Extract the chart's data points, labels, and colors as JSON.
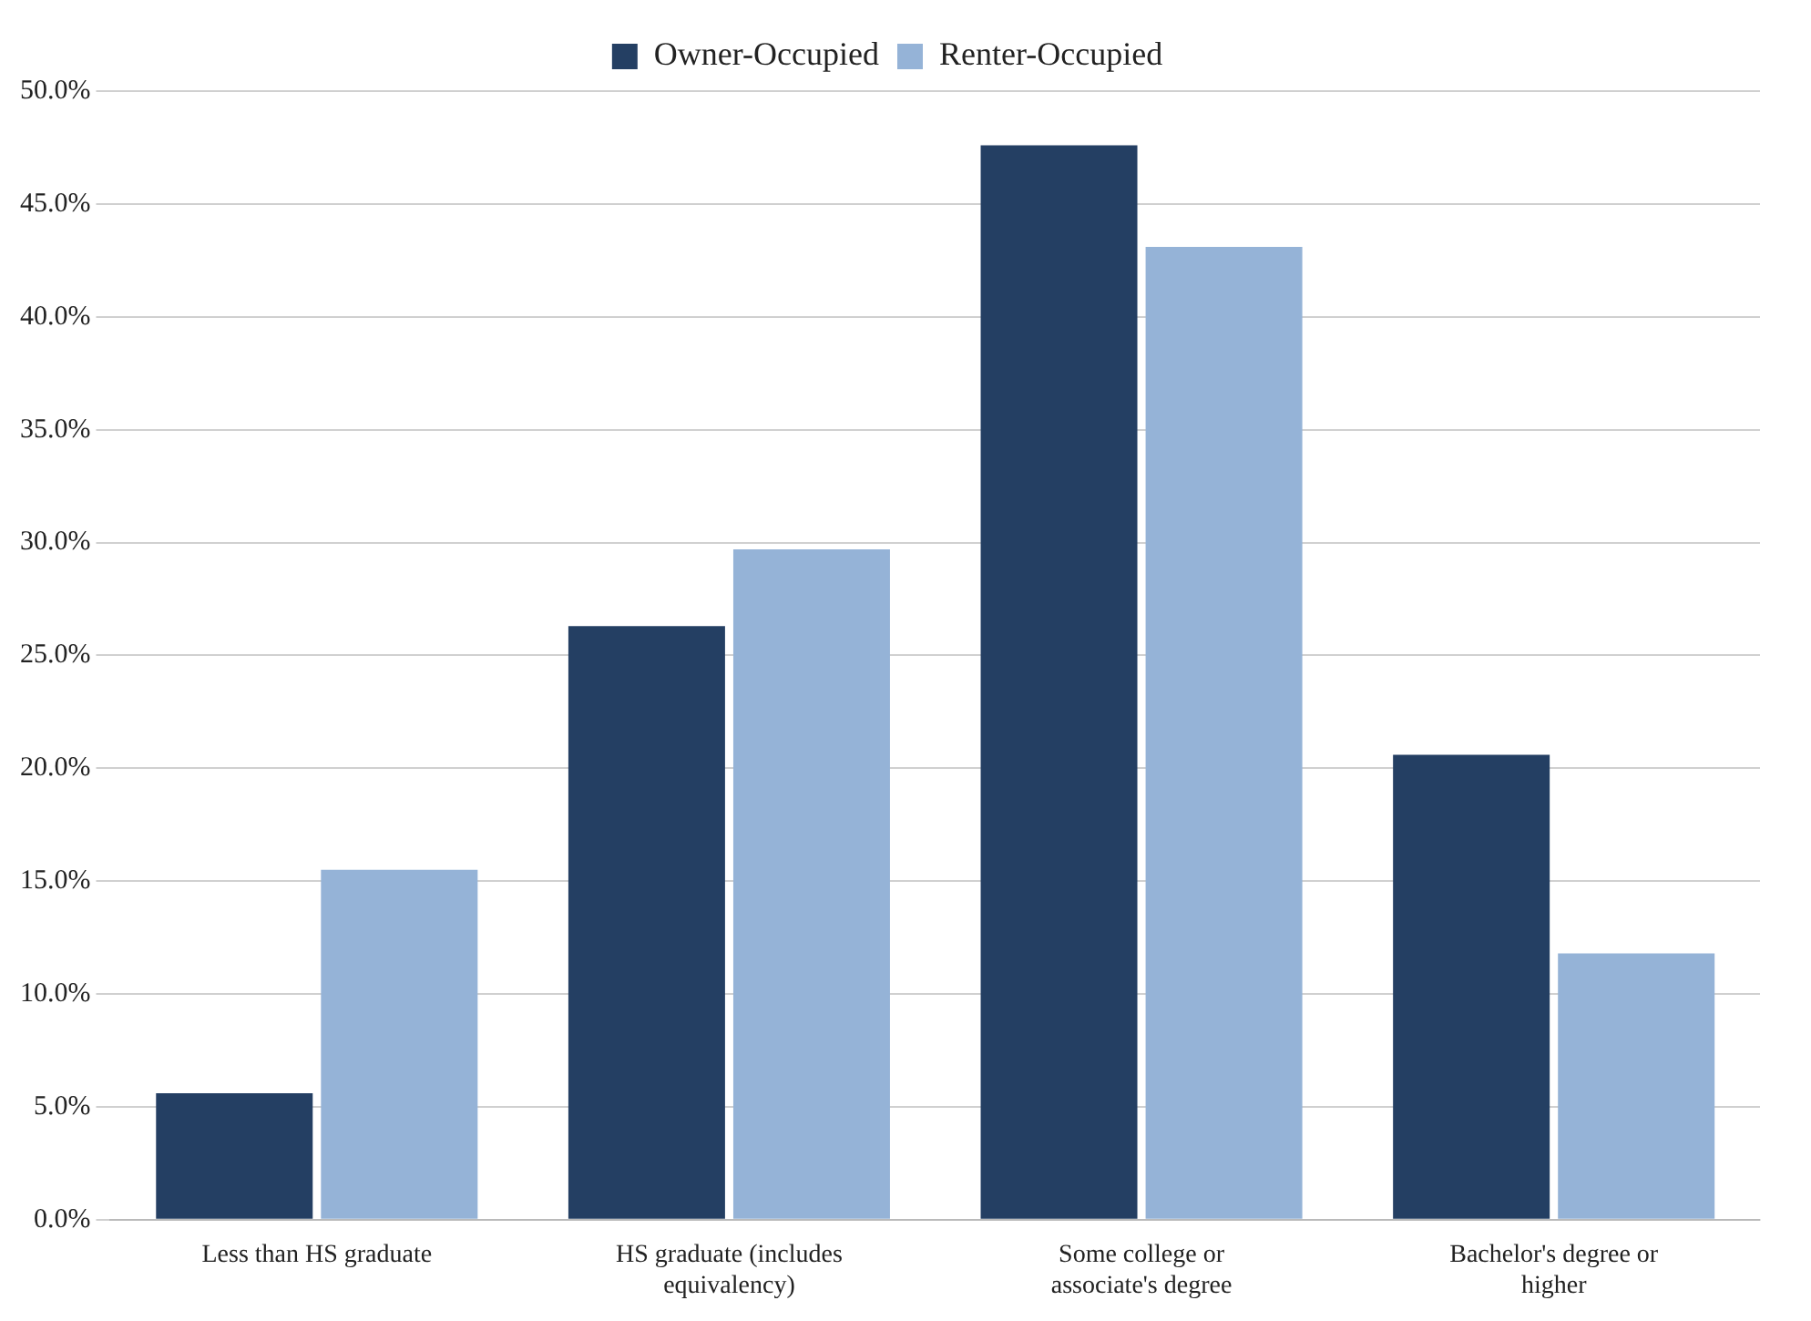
{
  "chart_data": {
    "type": "bar",
    "categories": [
      "Less than HS graduate",
      "HS graduate (includes equivalency)",
      "Some college or associate's degree",
      "Bachelor's degree or higher"
    ],
    "series": [
      {
        "name": "Owner-Occupied",
        "color": "#243f63",
        "values": [
          5.6,
          26.3,
          47.6,
          20.6
        ]
      },
      {
        "name": "Renter-Occupied",
        "color": "#95b3d7",
        "values": [
          15.5,
          29.7,
          43.1,
          11.8
        ]
      }
    ],
    "ylim": [
      0,
      50
    ],
    "yticks": [
      {
        "value": 0,
        "label": "0.0%"
      },
      {
        "value": 5,
        "label": "5.0%"
      },
      {
        "value": 10,
        "label": "10.0%"
      },
      {
        "value": 15,
        "label": "15.0%"
      },
      {
        "value": 20,
        "label": "20.0%"
      },
      {
        "value": 25,
        "label": "25.0%"
      },
      {
        "value": 30,
        "label": "30.0%"
      },
      {
        "value": 35,
        "label": "35.0%"
      },
      {
        "value": 40,
        "label": "40.0%"
      },
      {
        "value": 45,
        "label": "45.0%"
      },
      {
        "value": 50,
        "label": "50.0%"
      }
    ],
    "grid": "y",
    "legend": "top"
  }
}
